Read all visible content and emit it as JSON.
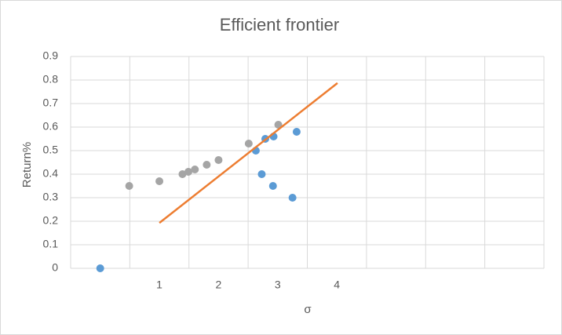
{
  "chart_data": {
    "type": "scatter",
    "title": "Efficient frontier",
    "x_label": "σ",
    "y_label": "Return%",
    "xlim": [
      -0.5,
      7.5
    ],
    "xticks": [
      1,
      2,
      3,
      4
    ],
    "x_gridlines": [
      -0.5,
      0.5,
      1.5,
      2.5,
      3.5,
      4.5,
      5.5,
      6.5,
      7.5
    ],
    "ylim": [
      0,
      0.9
    ],
    "yticks": [
      0,
      0.1,
      0.2,
      0.3,
      0.4,
      0.5,
      0.6,
      0.7,
      0.8,
      0.9
    ],
    "grid": true,
    "series": [
      {
        "color": "#a5a5a5",
        "mode": "markers",
        "x": [
          0.49,
          1.0,
          1.39,
          1.49,
          1.6,
          1.8,
          2.0,
          2.51,
          3.01
        ],
        "values": [
          0.35,
          0.37,
          0.4,
          0.41,
          0.42,
          0.44,
          0.46,
          0.53,
          0.61
        ]
      },
      {
        "color": "#5b9bd5",
        "mode": "markers",
        "x": [
          0,
          2.63,
          2.79,
          2.93,
          2.73,
          2.92,
          3.25,
          3.32
        ],
        "values": [
          0,
          0.5,
          0.55,
          0.56,
          0.4,
          0.35,
          0.3,
          0.58
        ]
      },
      {
        "color": "#ed7d31",
        "mode": "line",
        "x": [
          1.0,
          4.01
        ],
        "values": [
          0.193,
          0.787
        ]
      }
    ]
  }
}
